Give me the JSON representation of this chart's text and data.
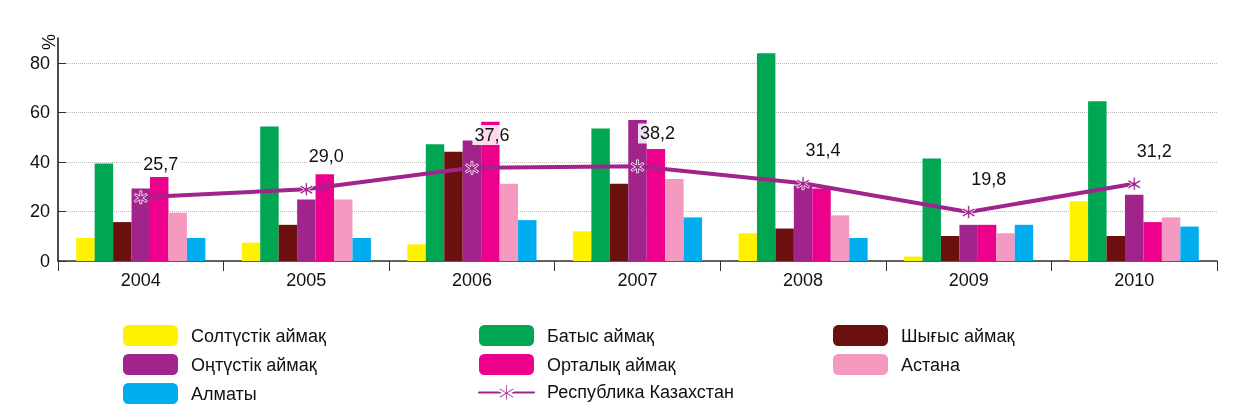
{
  "chart_data": {
    "type": "bar",
    "ylabel": "%",
    "categories": [
      "2004",
      "2005",
      "2006",
      "2007",
      "2008",
      "2009",
      "2010"
    ],
    "series": [
      {
        "name": "Солтүстік аймақ",
        "color": "#fff200",
        "values": [
          9.3,
          7.4,
          6.7,
          12.0,
          11.2,
          1.8,
          24.1
        ]
      },
      {
        "name": "Батыс аймақ",
        "color": "#00a651",
        "values": [
          39.4,
          54.3,
          47.1,
          53.5,
          83.8,
          41.4,
          64.5
        ]
      },
      {
        "name": "Шығыс аймақ",
        "color": "#6b0f0f",
        "values": [
          15.7,
          14.6,
          44.1,
          31.2,
          13.1,
          10.1,
          10.1
        ]
      },
      {
        "name": "Оңтүстік аймақ",
        "color": "#a0248c",
        "values": [
          29.3,
          24.8,
          48.6,
          56.9,
          30.5,
          14.6,
          26.7
        ]
      },
      {
        "name": "Орталық аймақ",
        "color": "#ec008c",
        "values": [
          33.9,
          35.0,
          56.2,
          45.2,
          29.3,
          14.6,
          15.7
        ]
      },
      {
        "name": "Астана",
        "color": "#f49ac1",
        "values": [
          19.5,
          24.8,
          31.2,
          33.1,
          18.4,
          11.2,
          17.6
        ]
      },
      {
        "name": "Алматы",
        "color": "#00aeef",
        "values": [
          9.3,
          9.3,
          16.5,
          17.6,
          9.3,
          14.6,
          13.9
        ]
      },
      {
        "name": "Республика Казахстан",
        "type": "line",
        "color": "#a0248c",
        "marker": "cross",
        "values": [
          25.7,
          29.0,
          37.6,
          38.2,
          31.4,
          19.8,
          31.2
        ],
        "value_labels": [
          "25,7",
          "29,0",
          "37,6",
          "38,2",
          "31,4",
          "19,8",
          "31,2"
        ]
      }
    ],
    "ylim": [
      0,
      90
    ],
    "yticks": [
      0,
      20,
      40,
      60,
      80
    ],
    "grid": "y",
    "legend": "bottom"
  }
}
